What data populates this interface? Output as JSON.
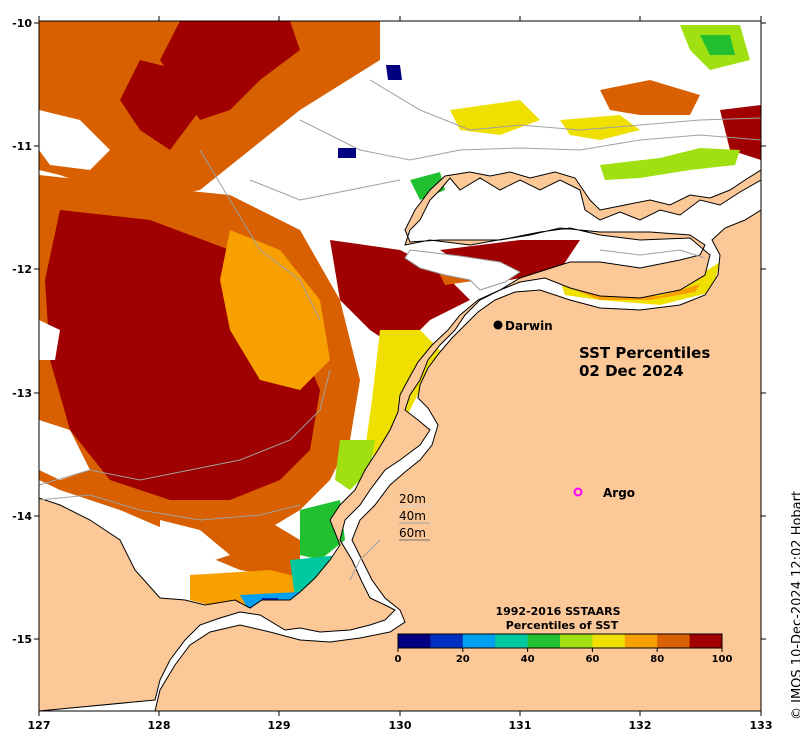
{
  "map": {
    "title_line1": "SST Percentiles",
    "title_line2": "02 Dec 2024",
    "x_ticks": [
      "127",
      "128",
      "129",
      "130",
      "131",
      "132",
      "133"
    ],
    "y_ticks": [
      "-10",
      "-11",
      "-12",
      "-13",
      "-14",
      "-15"
    ],
    "lon_range": [
      127,
      133
    ],
    "lat_range": [
      -15.6,
      -10
    ],
    "places": [
      {
        "name": "Darwin",
        "lon": 130.83,
        "lat": -12.46,
        "marker": "filled-circle"
      },
      {
        "name": "Argo",
        "lon": 131.48,
        "lat": -13.82,
        "marker": "open-circle"
      }
    ],
    "isobath_labels": [
      "20m",
      "40m",
      "60m"
    ],
    "colors": {
      "land": "#fcc898",
      "no_data": "#ffffff",
      "coast": "#000000",
      "contour": "#a0a0a0",
      "argo": "#ff00ff"
    }
  },
  "colorbar": {
    "title_line1": "1992-2016 SSTAARS",
    "title_line2": "Percentiles of SST",
    "tick_labels": [
      "0",
      "20",
      "40",
      "60",
      "80",
      "100"
    ],
    "colors": [
      "#000080",
      "#0030c0",
      "#00a0f0",
      "#00c8a0",
      "#20c030",
      "#a0e010",
      "#f0e000",
      "#f8a000",
      "#d86000",
      "#a00000"
    ]
  },
  "credit": "© IMOS 10-Dec-2024 12:02 Hobart"
}
